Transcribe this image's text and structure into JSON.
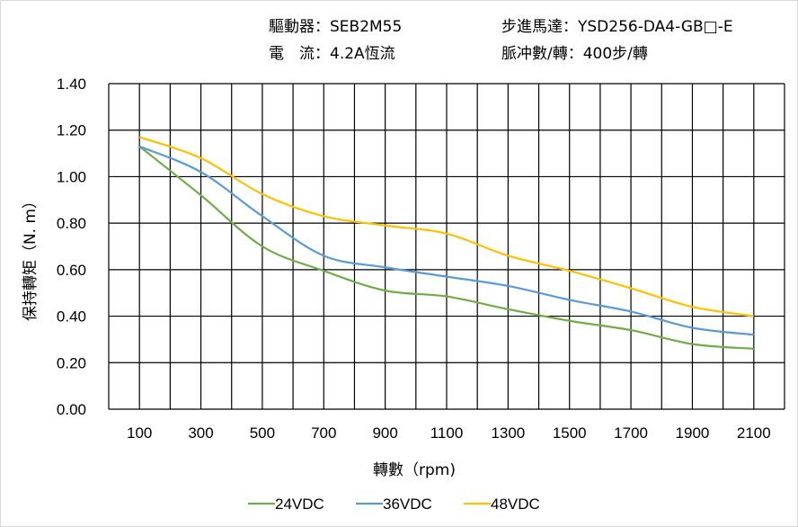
{
  "header": {
    "driver": "驅動器：SEB2M55",
    "current": "電　流：4.2A恆流",
    "motor": "步進馬達：YSD256-DA4-GB□-E",
    "pulses": "脈冲數/轉：400步/轉"
  },
  "chart_data": {
    "type": "line",
    "title": "",
    "xlabel": "轉數（rpm)",
    "ylabel": "保持轉矩（N. m）",
    "xlim": [
      0,
      2200
    ],
    "ylim": [
      0,
      1.4
    ],
    "grid": true,
    "legend": "bottom",
    "x_ticks": [
      100,
      300,
      500,
      700,
      900,
      1100,
      1300,
      1500,
      1700,
      1900,
      2100
    ],
    "y_ticks": [
      "0.00",
      "0.20",
      "0.40",
      "0.60",
      "0.80",
      "1.00",
      "1.20",
      "1.40"
    ],
    "x": [
      100,
      300,
      500,
      700,
      900,
      1100,
      1300,
      1500,
      1700,
      1900,
      2100
    ],
    "series": [
      {
        "name": "24VDC",
        "color": "#70ad47",
        "values": [
          1.13,
          0.92,
          0.7,
          0.595,
          0.51,
          0.485,
          0.43,
          0.38,
          0.34,
          0.28,
          0.26
        ]
      },
      {
        "name": "36VDC",
        "color": "#5b9bd5",
        "values": [
          1.13,
          1.02,
          0.83,
          0.66,
          0.61,
          0.57,
          0.53,
          0.47,
          0.42,
          0.35,
          0.32
        ]
      },
      {
        "name": "48VDC",
        "color": "#ffc000",
        "values": [
          1.17,
          1.08,
          0.925,
          0.83,
          0.79,
          0.755,
          0.66,
          0.595,
          0.52,
          0.44,
          0.4
        ]
      }
    ]
  }
}
